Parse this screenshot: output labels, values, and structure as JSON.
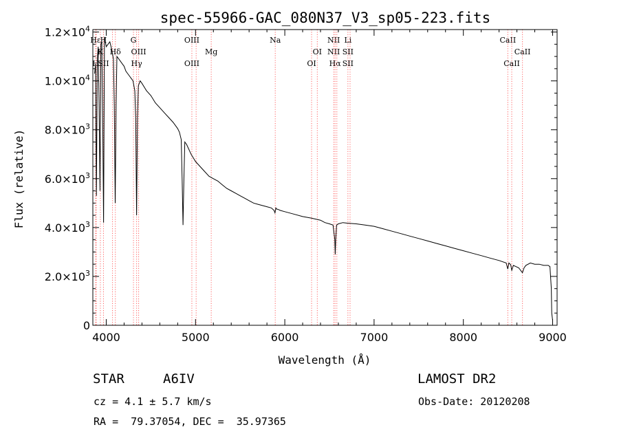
{
  "chart_data": {
    "type": "line",
    "title": "spec-55966-GAC_080N37_V3_sp05-223.fits",
    "xlabel": "Wavelength (Å)",
    "ylabel": "Flux (relative)",
    "xlim": [
      3850,
      9050
    ],
    "ylim": [
      0,
      12100
    ],
    "x_ticks": [
      4000,
      5000,
      6000,
      7000,
      8000,
      9000
    ],
    "x_tick_labels": [
      "4000",
      "5000",
      "6000",
      "7000",
      "8000",
      "9000"
    ],
    "y_ticks": [
      {
        "value": 0,
        "mant": "0",
        "exp": ""
      },
      {
        "value": 2000,
        "mant": "2.0×10",
        "exp": "3"
      },
      {
        "value": 4000,
        "mant": "4.0×10",
        "exp": "3"
      },
      {
        "value": 6000,
        "mant": "6.0×10",
        "exp": "3"
      },
      {
        "value": 8000,
        "mant": "8.0×10",
        "exp": "3"
      },
      {
        "value": 10000,
        "mant": "1.0×10",
        "exp": "4"
      },
      {
        "value": 12000,
        "mant": "1.2×10",
        "exp": "4"
      }
    ],
    "series": [
      {
        "x": [
          3870,
          3880,
          3890,
          3900,
          3910,
          3920,
          3930,
          3940,
          3950,
          3960,
          3970,
          3980,
          3990,
          4000,
          4020,
          4040,
          4060,
          4080,
          4090,
          4100,
          4110,
          4120,
          4140,
          4160,
          4180,
          4200,
          4220,
          4240,
          4260,
          4280,
          4300,
          4320,
          4330,
          4340,
          4350,
          4360,
          4380,
          4400,
          4450,
          4500,
          4550,
          4600,
          4650,
          4700,
          4750,
          4800,
          4820,
          4840,
          4850,
          4860,
          4870,
          4880,
          4900,
          4950,
          5000,
          5050,
          5100,
          5150,
          5200,
          5250,
          5300,
          5350,
          5400,
          5450,
          5500,
          5550,
          5600,
          5650,
          5700,
          5750,
          5800,
          5850,
          5880,
          5890,
          5900,
          5910,
          5920,
          5950,
          6000,
          6100,
          6200,
          6300,
          6400,
          6450,
          6500,
          6540,
          6560,
          6565,
          6570,
          6580,
          6600,
          6650,
          6700,
          6800,
          6900,
          7000,
          7100,
          7200,
          7300,
          7400,
          7500,
          7600,
          7700,
          7800,
          7900,
          8000,
          8100,
          8200,
          8300,
          8400,
          8480,
          8498,
          8510,
          8530,
          8542,
          8560,
          8590,
          8620,
          8662,
          8680,
          8700,
          8750,
          8800,
          8850,
          8900,
          8950,
          8970,
          8985,
          8990,
          9000
        ],
        "y": [
          10300,
          10700,
          5300,
          10900,
          11400,
          9000,
          5500,
          11500,
          11600,
          8500,
          4200,
          11800,
          11600,
          11400,
          11500,
          11600,
          11300,
          10900,
          9000,
          5000,
          9000,
          11000,
          10900,
          10800,
          10700,
          10600,
          10400,
          10300,
          10200,
          10100,
          10000,
          9600,
          8500,
          4500,
          8500,
          9800,
          10000,
          9900,
          9600,
          9400,
          9100,
          8900,
          8700,
          8500,
          8300,
          8050,
          7900,
          7600,
          6000,
          4100,
          6000,
          7500,
          7400,
          7000,
          6700,
          6500,
          6300,
          6100,
          6000,
          5900,
          5750,
          5600,
          5500,
          5400,
          5300,
          5200,
          5100,
          5000,
          4950,
          4900,
          4850,
          4800,
          4700,
          4600,
          4800,
          4750,
          4750,
          4700,
          4650,
          4550,
          4450,
          4380,
          4300,
          4200,
          4150,
          4100,
          3500,
          2900,
          3500,
          4100,
          4150,
          4200,
          4180,
          4150,
          4100,
          4050,
          3950,
          3850,
          3750,
          3650,
          3550,
          3450,
          3350,
          3250,
          3150,
          3050,
          2950,
          2850,
          2750,
          2650,
          2550,
          2300,
          2550,
          2480,
          2250,
          2450,
          2400,
          2350,
          2150,
          2350,
          2450,
          2550,
          2500,
          2500,
          2450,
          2450,
          2400,
          1500,
          500,
          200
        ]
      }
    ],
    "lines": [
      {
        "x": 3880,
        "l1": "Hε",
        "l2": "",
        "l3": "H"
      },
      {
        "x": 3889,
        "l1": "",
        "l2": "",
        "l3": ""
      },
      {
        "x": 3934,
        "l1": "",
        "l2": "K",
        "l3": ""
      },
      {
        "x": 3969,
        "l1": "H",
        "l2": "",
        "l3": "SII"
      },
      {
        "x": 4070,
        "l1": "",
        "l2": "",
        "l3": ""
      },
      {
        "x": 4102,
        "l1": "",
        "l2": "Hδ",
        "l3": ""
      },
      {
        "x": 4305,
        "l1": "G",
        "l2": "",
        "l3": ""
      },
      {
        "x": 4340,
        "l1": "",
        "l2": "",
        "l3": "Hγ"
      },
      {
        "x": 4363,
        "l1": "",
        "l2": "OIII",
        "l3": ""
      },
      {
        "x": 4959,
        "l1": "OIII",
        "l2": "",
        "l3": "OIII"
      },
      {
        "x": 5007,
        "l1": "",
        "l2": "",
        "l3": ""
      },
      {
        "x": 5176,
        "l1": "",
        "l2": "Mg",
        "l3": ""
      },
      {
        "x": 5893,
        "l1": "Na",
        "l2": "",
        "l3": ""
      },
      {
        "x": 6300,
        "l1": "",
        "l2": "",
        "l3": "OI"
      },
      {
        "x": 6364,
        "l1": "",
        "l2": "OI",
        "l3": ""
      },
      {
        "x": 6548,
        "l1": "NII",
        "l2": "NII",
        "l3": ""
      },
      {
        "x": 6563,
        "l1": "",
        "l2": "",
        "l3": "Hα"
      },
      {
        "x": 6583,
        "l1": "",
        "l2": "",
        "l3": ""
      },
      {
        "x": 6707,
        "l1": "Li",
        "l2": "SII",
        "l3": "SII"
      },
      {
        "x": 6731,
        "l1": "",
        "l2": "",
        "l3": ""
      },
      {
        "x": 8498,
        "l1": "CaII",
        "l2": "",
        "l3": ""
      },
      {
        "x": 8542,
        "l1": "",
        "l2": "",
        "l3": "CaII"
      },
      {
        "x": 8662,
        "l1": "",
        "l2": "CaII",
        "l3": ""
      }
    ],
    "line_color": "#ff6060",
    "grid": false,
    "legend": false
  },
  "info": {
    "star_label": "STAR",
    "star_class": "A6IV",
    "survey": "LAMOST DR2",
    "cz": "cz = 4.1 ± 5.7 km/s",
    "obs_date": "Obs-Date: 20120208",
    "coords": "RA =  79.37054, DEC =  35.97365"
  }
}
